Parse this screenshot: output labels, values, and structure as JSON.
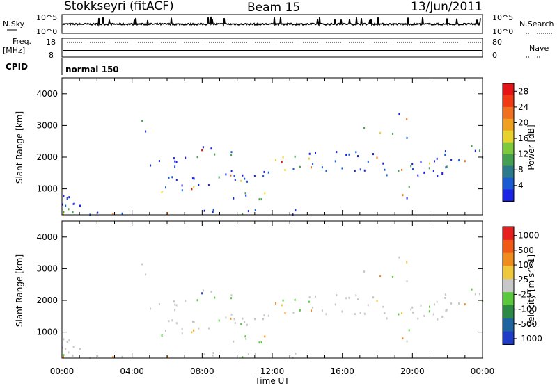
{
  "header": {
    "title": "Stokkseyri (fitACF)",
    "beam": "Beam 15",
    "date": "13/Jun/2011"
  },
  "top_panels": {
    "nsky_label": "N.Sky",
    "nsky_top": "10^5",
    "nsky_bottom": "10^0",
    "nsearch_label": "N.Search",
    "nsearch_top": "10^5",
    "nsearch_bottom": "10^0",
    "freq_label": "Freq.",
    "freq_unit": "[MHz]",
    "freq_top": "18",
    "freq_bottom": "8",
    "nave_label": "Nave",
    "nave_top": "80",
    "nave_bottom": "0",
    "cpid_label": "CPID",
    "cpid_value": "normal 150"
  },
  "chart_data": [
    {
      "type": "heatmap",
      "name": "Power",
      "ylabel": "Slant Range [km]",
      "xlabel": "",
      "ylim": [
        180,
        4500
      ],
      "xlim_hours": [
        0,
        24
      ],
      "yticks": [
        "1000",
        "2000",
        "3000",
        "4000"
      ],
      "colorbar_label": "Power [dB]",
      "colorbar_ticks": [
        "4",
        "8",
        "12",
        "16",
        "20",
        "24",
        "28"
      ],
      "colors": [
        "#1a23e6",
        "#1a5ad2",
        "#2a7a8c",
        "#44a050",
        "#7ec83c",
        "#e6d22a",
        "#f0a020",
        "#f07020",
        "#f03a14",
        "#e61414"
      ]
    },
    {
      "type": "heatmap",
      "name": "Velocity",
      "ylabel": "Slant Range [km]",
      "xlabel": "Time UT",
      "ylim": [
        180,
        4500
      ],
      "xlim_hours": [
        0,
        24
      ],
      "yticks": [
        "1000",
        "2000",
        "3000",
        "4000"
      ],
      "xticks": [
        "00:00",
        "04:00",
        "08:00",
        "12:00",
        "16:00",
        "20:00",
        "00:00"
      ],
      "colorbar_label": "Velocity [m s^-1]",
      "colorbar_ticks": [
        "1000",
        "500",
        "100",
        "25",
        "-25",
        "-100",
        "-500",
        "-1000"
      ],
      "colors": [
        "#1e3cc8",
        "#1e64a0",
        "#2d8a46",
        "#5ac83c",
        "#c8c8c8",
        "#f0c83c",
        "#f08c1e",
        "#f05a14",
        "#e61e1e"
      ]
    }
  ]
}
